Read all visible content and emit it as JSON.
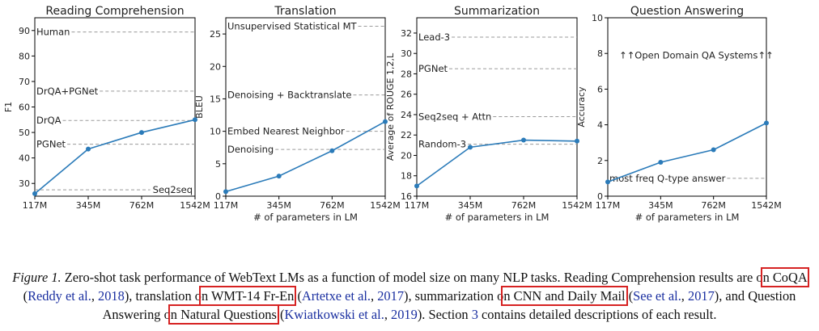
{
  "colors": {
    "series": "#2b7bb9",
    "reference_line": "#9a9a9a",
    "highlight_box": "#d62222",
    "citation": "#1a2fa0"
  },
  "chart_data": [
    {
      "type": "line",
      "title": "Reading Comprehension",
      "xlabel": "",
      "ylabel": "F1",
      "categories": [
        "117M",
        "345M",
        "762M",
        "1542M"
      ],
      "ylim": [
        25,
        95
      ],
      "yticks": [
        30,
        40,
        50,
        60,
        70,
        80,
        90
      ],
      "series": [
        {
          "values": [
            26,
            43.5,
            50,
            55
          ]
        }
      ],
      "reference_lines": [
        {
          "label": "Human",
          "value": 89.4
        },
        {
          "label": "DrQA+PGNet",
          "value": 66.2
        },
        {
          "label": "DrQA",
          "value": 54.7
        },
        {
          "label": "PGNet",
          "value": 45.4
        },
        {
          "label": "Seq2seq",
          "value": 27.5
        }
      ]
    },
    {
      "type": "line",
      "title": "Translation",
      "xlabel": "# of parameters in LM",
      "ylabel": "BLEU",
      "categories": [
        "117M",
        "345M",
        "762M",
        "1542M"
      ],
      "ylim": [
        0,
        27.5
      ],
      "yticks": [
        0,
        5,
        10,
        15,
        20,
        25
      ],
      "series": [
        {
          "values": [
            0.7,
            3.1,
            7,
            11.5
          ]
        }
      ],
      "reference_lines": [
        {
          "label": "Unsupervised Statistical MT",
          "value": 26.2
        },
        {
          "label": "Denoising + Backtranslate",
          "value": 15.6
        },
        {
          "label": "Embed Nearest Neighbor",
          "value": 10
        },
        {
          "label": "Denoising",
          "value": 7.2
        }
      ]
    },
    {
      "type": "line",
      "title": "Summarization",
      "xlabel": "# of parameters in LM",
      "ylabel": "Average of ROUGE 1,2,L",
      "categories": [
        "117M",
        "345M",
        "762M",
        "1542M"
      ],
      "ylim": [
        16,
        33.5
      ],
      "yticks": [
        16,
        18,
        20,
        22,
        24,
        26,
        28,
        30,
        32
      ],
      "series": [
        {
          "values": [
            17,
            20.8,
            21.5,
            21.4
          ]
        }
      ],
      "reference_lines": [
        {
          "label": "Lead-3",
          "value": 31.6
        },
        {
          "label": "PGNet",
          "value": 28.5
        },
        {
          "label": "Seq2seq + Attn",
          "value": 23.8
        },
        {
          "label": "Random-3",
          "value": 21.1
        }
      ]
    },
    {
      "type": "line",
      "title": "Question Answering",
      "xlabel": "# of parameters in LM",
      "ylabel": "Accuracy",
      "categories": [
        "117M",
        "345M",
        "762M",
        "1542M"
      ],
      "ylim": [
        0,
        10
      ],
      "yticks": [
        0,
        2,
        4,
        6,
        8,
        10
      ],
      "series": [
        {
          "values": [
            0.8,
            1.9,
            2.6,
            4.1
          ]
        }
      ],
      "reference_lines": [
        {
          "label": "most freq Q-type answer",
          "value": 1
        }
      ],
      "annotation": "↑↑Open Domain QA Systems↑↑"
    }
  ],
  "caption": {
    "figure_label": "Figure 1.",
    "p1": " Zero-shot task performance of WebText LMs as a function of model size on many NLP tasks. Reading Comprehension results are o",
    "hl1": "n CoQA",
    "p2": " (",
    "cite1": "Reddy et al.",
    "p3": ", ",
    "year1": "2018",
    "p4": "), translation o",
    "hl2": "n WMT-14 Fr-En",
    "p5": " (",
    "cite2": "Artetxe et al.",
    "p6": ", ",
    "year2": "2017",
    "p7": "), summarization o",
    "hl3": "n CNN and Daily Mail",
    "p8": " (",
    "cite3": "See et al.",
    "p9": ", ",
    "year3": "2017",
    "p10": "), and Question Answering o",
    "hl4": "n Natural Questions",
    "p11": " (",
    "cite4": "Kwiatkowski et al.",
    "p12": ", ",
    "year4": "2019",
    "p13": "). Section ",
    "section": "3",
    "p14": " contains detailed descriptions of each result."
  }
}
